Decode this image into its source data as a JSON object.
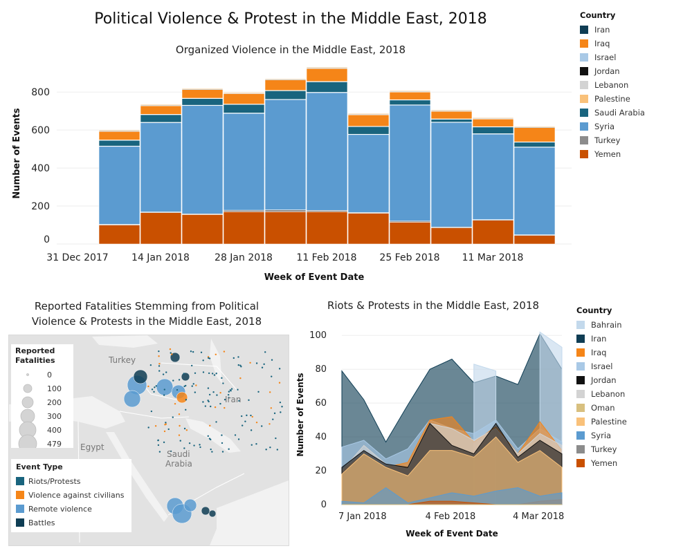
{
  "title": "Political Violence & Protest in the Middle East, 2018",
  "colors": {
    "Iran": "#0f3d54",
    "Iraq": "#f58518",
    "Israel": "#a9c9e6",
    "Jordan": "#111111",
    "Lebanon": "#d3d3d3",
    "Palestine": "#f9c17a",
    "Saudi Arabia": "#19647e",
    "Syria": "#5b9bd0",
    "Turkey": "#8c8c8c",
    "Yemen": "#c95000",
    "Bahrain": "#c3d9ec",
    "Oman": "#d8c07f",
    "Riots/Protests": "#19647e",
    "Violence against civilians": "#f58518",
    "Remote violence": "#5b9bd0",
    "Battles": "#0f3d54"
  },
  "legend_top": {
    "title": "Country",
    "items": [
      "Iran",
      "Iraq",
      "Israel",
      "Jordan",
      "Lebanon",
      "Palestine",
      "Saudi Arabia",
      "Syria",
      "Turkey",
      "Yemen"
    ]
  },
  "legend_riots": {
    "title": "Country",
    "items": [
      "Bahrain",
      "Iran",
      "Iraq",
      "Israel",
      "Jordan",
      "Lebanon",
      "Oman",
      "Palestine",
      "Syria",
      "Turkey",
      "Yemen"
    ]
  },
  "map": {
    "title_line1": "Reported Fatalities Stemming from Political",
    "title_line2": "Violence & Protests in the Middle East, 2018",
    "labels": {
      "turkey": "Turkey",
      "iran": "Iran",
      "egypt": "Egypt",
      "saudi1": "Saudi",
      "saudi2": "Arabia"
    },
    "size_legend": {
      "title1": "Reported",
      "title2": "Fatalities",
      "values": [
        "0",
        "100",
        "200",
        "300",
        "400",
        "479"
      ]
    },
    "event_legend": {
      "title": "Event Type",
      "items": [
        "Riots/Protests",
        "Violence against civilians",
        "Remote violence",
        "Battles"
      ]
    }
  },
  "chart_data": [
    {
      "type": "bar",
      "stacked": true,
      "title": "Organized Violence in the Middle East, 2018",
      "xlabel": "Week of Event Date",
      "ylabel": "Number of Events",
      "ylim": [
        0,
        950
      ],
      "yticks": [
        "0",
        "200",
        "400",
        "600",
        "800"
      ],
      "xticks": [
        "31 Dec 2017",
        "14 Jan 2018",
        "28 Jan 2018",
        "11 Feb 2018",
        "25 Feb 2018",
        "11 Mar 2018"
      ],
      "categories": [
        "31 Dec 2017",
        "7 Jan 2018",
        "14 Jan 2018",
        "21 Jan 2018",
        "28 Jan 2018",
        "4 Feb 2018",
        "11 Feb 2018",
        "18 Feb 2018",
        "25 Feb 2018",
        "4 Mar 2018",
        "11 Mar 2018",
        "18 Mar 2018"
      ],
      "series": [
        {
          "name": "Yemen",
          "values": [
            0,
            100,
            165,
            155,
            170,
            170,
            170,
            162,
            115,
            85,
            125,
            45
          ]
        },
        {
          "name": "Turkey",
          "values": [
            0,
            4,
            4,
            4,
            8,
            10,
            7,
            4,
            6,
            5,
            4,
            4
          ]
        },
        {
          "name": "Syria",
          "values": [
            0,
            410,
            470,
            570,
            510,
            580,
            620,
            410,
            610,
            550,
            450,
            460
          ]
        },
        {
          "name": "Lebanon",
          "values": [
            0,
            2,
            2,
            2,
            2,
            2,
            2,
            2,
            2,
            2,
            2,
            2
          ]
        },
        {
          "name": "Saudi Arabia",
          "values": [
            0,
            30,
            40,
            35,
            45,
            45,
            55,
            40,
            25,
            15,
            35,
            25
          ]
        },
        {
          "name": "Israel",
          "values": [
            0,
            2,
            2,
            2,
            2,
            2,
            2,
            2,
            2,
            2,
            2,
            2
          ]
        },
        {
          "name": "Iraq",
          "values": [
            0,
            45,
            45,
            45,
            55,
            55,
            68,
            60,
            40,
            40,
            40,
            75
          ]
        },
        {
          "name": "Iran",
          "values": [
            0,
            3,
            3,
            3,
            3,
            3,
            3,
            3,
            3,
            3,
            3,
            3
          ]
        },
        {
          "name": "Palestine",
          "values": [
            0,
            4,
            4,
            4,
            4,
            4,
            4,
            4,
            4,
            4,
            4,
            4
          ]
        },
        {
          "name": "Jordan",
          "values": [
            0,
            0,
            0,
            0,
            0,
            0,
            0,
            0,
            0,
            0,
            0,
            0
          ]
        }
      ]
    },
    {
      "type": "area",
      "stacked": false,
      "title": "Riots & Protests in the Middle East, 2018",
      "xlabel": "Week of Event Date",
      "ylabel": "Number of Events",
      "ylim": [
        0,
        105
      ],
      "yticks": [
        "0",
        "20",
        "40",
        "60",
        "80",
        "100"
      ],
      "xticks": [
        "7 Jan 2018",
        "4 Feb 2018",
        "4 Mar 2018"
      ],
      "x": [
        "31 Dec 2017",
        "7 Jan 2018",
        "14 Jan 2018",
        "21 Jan 2018",
        "28 Jan 2018",
        "4 Feb 2018",
        "11 Feb 2018",
        "18 Feb 2018",
        "25 Feb 2018",
        "4 Mar 2018",
        "11 Mar 2018"
      ],
      "series": [
        {
          "name": "Iran",
          "values": [
            79,
            62,
            37,
            59,
            80,
            86,
            72,
            76,
            71,
            101,
            80
          ]
        },
        {
          "name": "Bahrain",
          "values": [
            null,
            null,
            null,
            null,
            null,
            null,
            83,
            79,
            null,
            102,
            93
          ]
        },
        {
          "name": "Israel",
          "values": [
            34,
            38,
            27,
            33,
            50,
            45,
            42,
            50,
            33,
            45,
            37
          ]
        },
        {
          "name": "Iraq",
          "values": [
            20,
            30,
            22,
            25,
            50,
            52,
            37,
            46,
            30,
            49,
            32
          ]
        },
        {
          "name": "Lebanon",
          "values": [
            20,
            35,
            24,
            21,
            48,
            45,
            38,
            45,
            30,
            42,
            35
          ]
        },
        {
          "name": "Jordan",
          "values": [
            22,
            32,
            24,
            22,
            48,
            35,
            30,
            48,
            28,
            38,
            30
          ]
        },
        {
          "name": "Palestine",
          "values": [
            18,
            30,
            22,
            17,
            32,
            32,
            28,
            40,
            25,
            32,
            22
          ]
        },
        {
          "name": "Syria",
          "values": [
            2,
            1,
            10,
            1,
            4,
            7,
            5,
            8,
            10,
            5,
            7
          ]
        },
        {
          "name": "Turkey",
          "values": [
            0,
            0,
            0,
            0,
            0,
            0,
            0,
            0,
            0,
            2,
            3
          ]
        },
        {
          "name": "Yemen",
          "values": [
            0,
            0,
            0,
            0,
            2,
            2,
            1,
            0,
            0,
            0,
            0
          ]
        },
        {
          "name": "Oman",
          "values": [
            0,
            0,
            0,
            0,
            0,
            0,
            0,
            0,
            0,
            0,
            0
          ]
        }
      ]
    }
  ]
}
